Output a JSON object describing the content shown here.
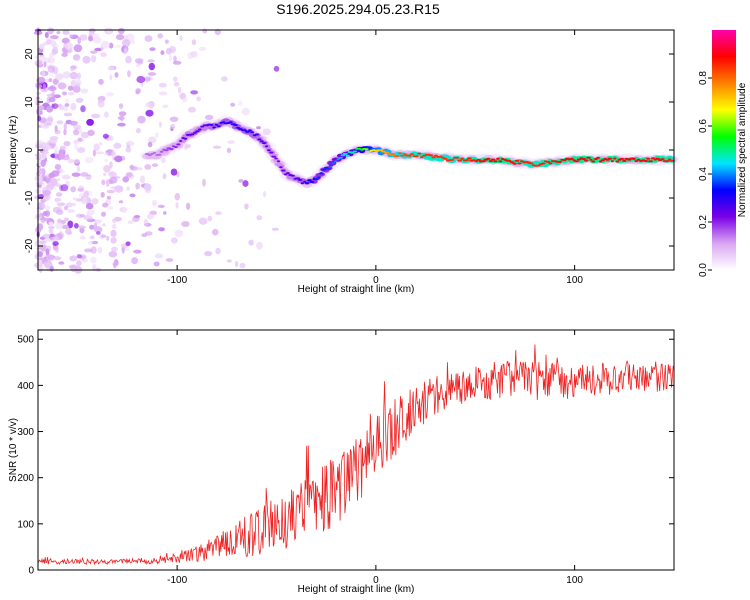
{
  "title": "S196.2025.294.05.23.R15",
  "chart_data": [
    {
      "type": "heatmap",
      "name": "spectrogram",
      "xlabel": "Height of straight line (km)",
      "ylabel": "Frequency (Hz)",
      "xlim": [
        -170,
        150
      ],
      "ylim": [
        -25,
        25
      ],
      "xticks": [
        -100,
        0,
        100
      ],
      "yticks": [
        -20,
        -10,
        0,
        10,
        20
      ],
      "colorbar": {
        "label": "Normalized spectral amplitude",
        "range": [
          0.0,
          1.0
        ],
        "ticks": [
          0.0,
          0.2,
          0.4,
          0.6,
          0.8
        ],
        "tick_labels": [
          "0.0",
          "0.2",
          "0.4",
          "0.6",
          "0.8"
        ],
        "colors": [
          "#ffffff",
          "#d9a6f2",
          "#7a00e6",
          "#0000ff",
          "#00e5ff",
          "#00ff00",
          "#ffff00",
          "#ff8000",
          "#ff0000",
          "#ff00aa"
        ]
      },
      "ridge": {
        "x": [
          -110,
          -100,
          -95,
          -90,
          -85,
          -80,
          -75,
          -70,
          -65,
          -60,
          -55,
          -50,
          -45,
          -40,
          -35,
          -30,
          -25,
          -20,
          -15,
          -10,
          -5,
          0,
          10,
          20,
          40,
          60,
          80,
          100,
          120,
          140,
          150
        ],
        "y": [
          -1,
          1,
          3,
          4,
          5,
          5,
          6,
          5,
          4,
          3,
          1,
          -2,
          -5,
          -6,
          -7,
          -6,
          -4,
          -2,
          -1,
          0,
          0,
          0,
          -1,
          -1,
          -2,
          -2,
          -3,
          -2,
          -2,
          -2,
          -2
        ],
        "amplitude": [
          0.15,
          0.2,
          0.25,
          0.25,
          0.25,
          0.3,
          0.3,
          0.3,
          0.3,
          0.28,
          0.25,
          0.22,
          0.25,
          0.25,
          0.3,
          0.35,
          0.35,
          0.4,
          0.45,
          0.5,
          0.6,
          0.7,
          0.8,
          0.85,
          0.85,
          0.9,
          0.85,
          0.9,
          0.9,
          0.9,
          0.85
        ]
      }
    },
    {
      "type": "line",
      "name": "snr",
      "xlabel": "Height of straight line (km)",
      "ylabel": "SNR (10 * v/v)",
      "xlim": [
        -170,
        150
      ],
      "ylim": [
        0,
        520
      ],
      "xticks": [
        -100,
        0,
        100
      ],
      "yticks": [
        0,
        100,
        200,
        300,
        400,
        500
      ],
      "color": "#ee2222",
      "series": [
        {
          "name": "SNR",
          "x": [
            -170,
            -150,
            -130,
            -110,
            -100,
            -90,
            -80,
            -70,
            -60,
            -50,
            -40,
            -30,
            -20,
            -10,
            0,
            10,
            20,
            30,
            40,
            60,
            80,
            100,
            120,
            140,
            150
          ],
          "mean": [
            18,
            18,
            18,
            20,
            25,
            35,
            50,
            65,
            80,
            100,
            120,
            150,
            170,
            210,
            260,
            310,
            350,
            380,
            395,
            410,
            410,
            410,
            415,
            420,
            420
          ],
          "spread": [
            8,
            8,
            8,
            10,
            15,
            25,
            40,
            60,
            70,
            90,
            100,
            110,
            110,
            110,
            110,
            90,
            70,
            60,
            55,
            60,
            60,
            55,
            50,
            50,
            50
          ]
        }
      ]
    }
  ]
}
